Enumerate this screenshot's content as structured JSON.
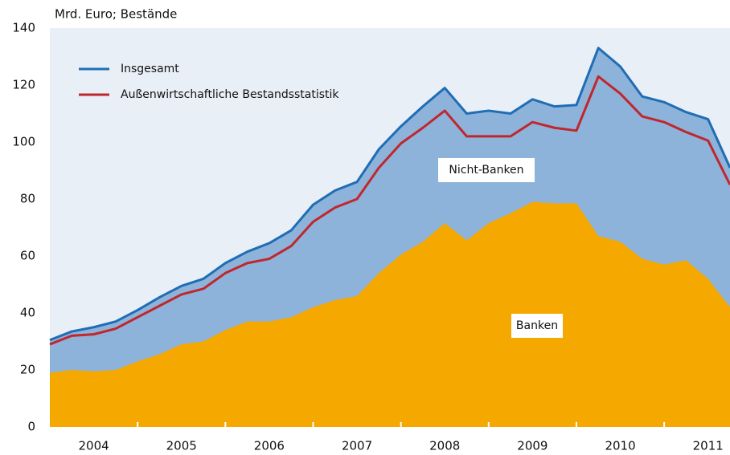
{
  "chart_data": {
    "type": "area",
    "y_label": "Mrd. Euro; Bestände",
    "categories": [
      null,
      null,
      "2004",
      null,
      null,
      null,
      "2005",
      null,
      null,
      null,
      "2006",
      null,
      null,
      null,
      "2007",
      null,
      null,
      null,
      "2008",
      null,
      null,
      null,
      "2009",
      null,
      null,
      null,
      "2010",
      null,
      null,
      null,
      "2011",
      null
    ],
    "series": [
      {
        "name": "Insgesamt",
        "color": "#1f6db5",
        "area_color": "#8db3da",
        "values": [
          30.5,
          33.5,
          35,
          37,
          41,
          45.5,
          49.5,
          52,
          57.5,
          61.5,
          64.5,
          69,
          78,
          83,
          86,
          97.5,
          105.5,
          112.5,
          119,
          110,
          111,
          110,
          115,
          112.5,
          113,
          133,
          126.5,
          116,
          114,
          110.5,
          108,
          91
        ]
      },
      {
        "name": "Außenwirtschaftliche Bestandsstatistik",
        "color": "#c0272d",
        "values": [
          29,
          32,
          32.5,
          34.5,
          38.5,
          42.5,
          46.5,
          48.5,
          54,
          57.5,
          59,
          63.5,
          72,
          77,
          80,
          91,
          99.5,
          105,
          111,
          102,
          102,
          102,
          107,
          105,
          104,
          123,
          117,
          109,
          107,
          103.5,
          100.5,
          85
        ]
      }
    ],
    "areas": [
      {
        "name": "Banken",
        "color": "#f5a800",
        "values": [
          19,
          20,
          19.5,
          20,
          23,
          25.5,
          29,
          30,
          34,
          37,
          37,
          38.5,
          42,
          44.5,
          46,
          54,
          60.5,
          65,
          71.5,
          65.5,
          71.5,
          75,
          79,
          78.5,
          78.5,
          67,
          65,
          59,
          57,
          58.5,
          52,
          42
        ]
      }
    ],
    "annotations": [
      "Nicht-Banken"
    ],
    "ylim": [
      0,
      140
    ],
    "yticks": [
      0,
      20,
      40,
      60,
      80,
      100,
      120,
      140
    ],
    "background": "#e9eff7"
  }
}
